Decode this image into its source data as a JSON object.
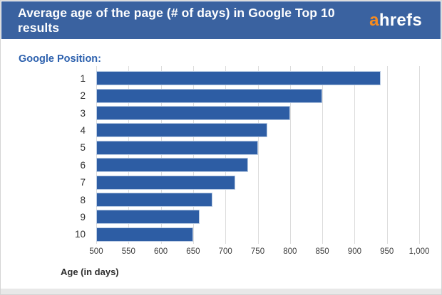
{
  "header": {
    "title": "Average age of the page (# of days) in Google Top 10 results",
    "logo": {
      "prefix": "a",
      "suffix": "hrefs"
    }
  },
  "chart_data": {
    "type": "bar",
    "orientation": "horizontal",
    "group_label": "Google Position:",
    "categories": [
      "1",
      "2",
      "3",
      "4",
      "5",
      "6",
      "7",
      "8",
      "9",
      "10"
    ],
    "values": [
      940,
      850,
      800,
      765,
      750,
      735,
      715,
      680,
      660,
      650
    ],
    "xlabel": "Age (in days)",
    "xlim": [
      500,
      1000
    ],
    "x_ticks": [
      500,
      550,
      600,
      650,
      700,
      750,
      800,
      850,
      900,
      950,
      1000
    ],
    "x_tick_labels": [
      "500",
      "550",
      "600",
      "650",
      "700",
      "750",
      "800",
      "850",
      "900",
      "950",
      "1,000"
    ],
    "grid": true,
    "legend": "none",
    "bar_color": "#2d5da4",
    "header_bg": "#3a62a0",
    "accent_orange": "#f68b1f",
    "label_blue": "#2d61ae"
  }
}
